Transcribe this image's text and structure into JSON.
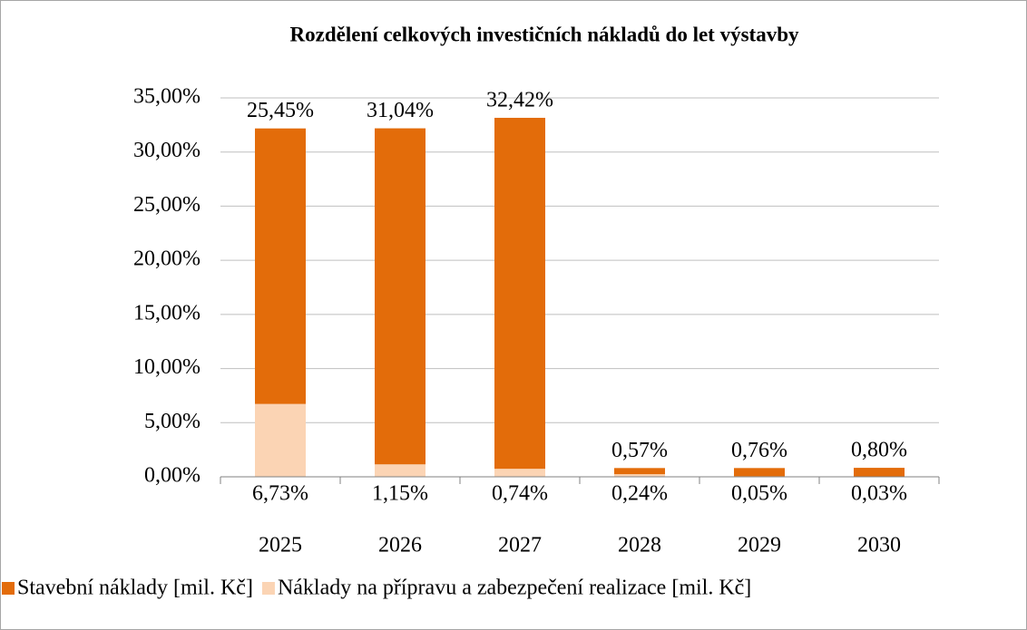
{
  "chart_data": {
    "type": "stacked-bar",
    "title": "Rozdělení celkových investičních nákladů do let výstavby",
    "categories": [
      "2025",
      "2026",
      "2027",
      "2028",
      "2029",
      "2030"
    ],
    "series": [
      {
        "name": "Náklady na přípravu a zabezpečení realizace [mil. Kč]",
        "color": "#fbd4b4",
        "values": [
          6.73,
          1.15,
          0.74,
          0.24,
          0.05,
          0.03
        ],
        "value_labels": [
          "6,73%",
          "1,15%",
          "0,74%",
          "0,24%",
          "0,05%",
          "0,03%"
        ]
      },
      {
        "name": "Stavební náklady [mil. Kč]",
        "color": "#e36c0a",
        "values": [
          25.45,
          31.04,
          32.42,
          0.57,
          0.76,
          0.8
        ],
        "value_labels": [
          "25,45%",
          "31,04%",
          "32,42%",
          "0,57%",
          "0,76%",
          "0,80%"
        ]
      }
    ],
    "ylim": [
      0,
      35
    ],
    "yticks": [
      {
        "value": 0,
        "label": "0,00%"
      },
      {
        "value": 5,
        "label": "5,00%"
      },
      {
        "value": 10,
        "label": "10,00%"
      },
      {
        "value": 15,
        "label": "15,00%"
      },
      {
        "value": 20,
        "label": "20,00%"
      },
      {
        "value": 25,
        "label": "25,00%"
      },
      {
        "value": 30,
        "label": "30,00%"
      },
      {
        "value": 35,
        "label": "35,00%"
      }
    ],
    "grid": true,
    "legend": "bottom"
  }
}
